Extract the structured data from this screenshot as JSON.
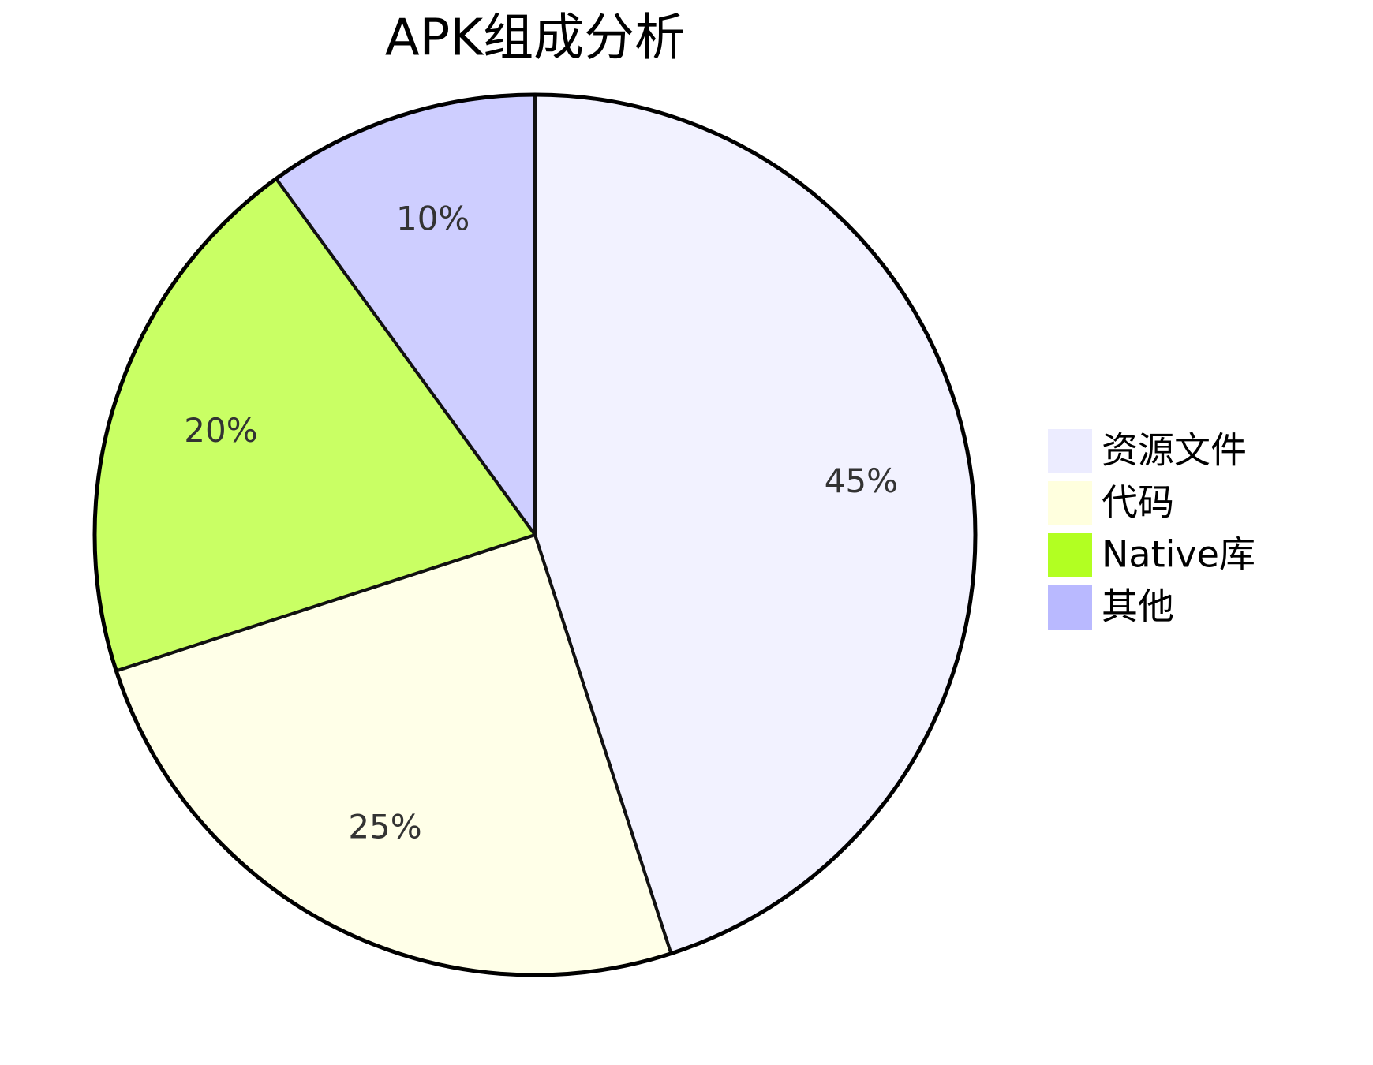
{
  "chart_data": {
    "type": "pie",
    "title": "APK组成分析",
    "categories": [
      "资源文件",
      "代码",
      "Native库",
      "其他"
    ],
    "values": [
      45,
      25,
      20,
      10
    ],
    "value_labels": [
      "45%",
      "25%",
      "20%",
      "10%"
    ],
    "colors": [
      "#ECECFF",
      "#FFFFDE",
      "#B2FF22",
      "#B9B9FF"
    ]
  }
}
